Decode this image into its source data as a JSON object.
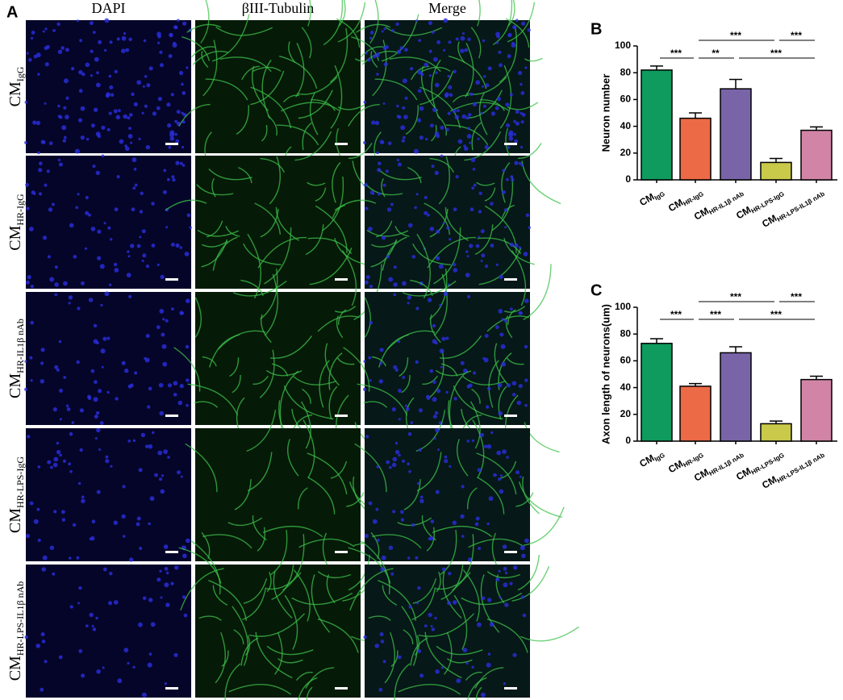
{
  "figure": {
    "panel_a": {
      "label": "A",
      "columns": [
        "DAPI",
        "βIII-Tubulin",
        "Merge"
      ],
      "rows": [
        {
          "main": "CM",
          "sub": "IgG"
        },
        {
          "main": "CM",
          "sub": "HR-IgG"
        },
        {
          "main": "CM",
          "sub": "HR-IL1β nAb"
        },
        {
          "main": "CM",
          "sub": "HR-LPS-IgG"
        },
        {
          "main": "CM",
          "sub": "HR-LPS-IL1β nAb"
        }
      ]
    }
  },
  "chart_data": [
    {
      "type": "bar",
      "panel_label": "B",
      "y_label": "Neuron number",
      "categories": [
        {
          "main": "CM",
          "sub": "IgG"
        },
        {
          "main": "CM",
          "sub": "HR-IgG"
        },
        {
          "main": "CM",
          "sub": "HR-IL1β nAb"
        },
        {
          "main": "CM",
          "sub": "HR-LPS-IgG"
        },
        {
          "main": "CM",
          "sub": "HR-LPS-IL1β nAb"
        }
      ],
      "values": [
        82,
        46,
        68,
        13,
        37
      ],
      "errors": [
        3,
        4,
        7,
        3,
        2.5
      ],
      "colors": [
        "#0f9b5e",
        "#ec6a46",
        "#7a64a8",
        "#c9c94a",
        "#d184a6"
      ],
      "ylim": [
        0,
        100
      ],
      "yticks": [
        0,
        20,
        40,
        60,
        80,
        100
      ],
      "comparisons": [
        {
          "groups": [
            0,
            1
          ],
          "label": "***"
        },
        {
          "groups": [
            1,
            2
          ],
          "label": "**"
        },
        {
          "groups": [
            2,
            4
          ],
          "label": "***"
        },
        {
          "groups": [
            1,
            3
          ],
          "label": "***"
        },
        {
          "groups": [
            3,
            4
          ],
          "label": "***"
        }
      ]
    },
    {
      "type": "bar",
      "panel_label": "C",
      "y_label": "Axon length of neurons(um)",
      "categories": [
        {
          "main": "CM",
          "sub": "IgG"
        },
        {
          "main": "CM",
          "sub": "HR-IgG"
        },
        {
          "main": "CM",
          "sub": "HR-IL1β nAb"
        },
        {
          "main": "CM",
          "sub": "HR-LPS-IgG"
        },
        {
          "main": "CM",
          "sub": "HR-LPS-IL1β nAb"
        }
      ],
      "values": [
        73,
        41,
        66,
        13,
        46
      ],
      "errors": [
        3.5,
        2,
        4.5,
        2,
        2.5
      ],
      "colors": [
        "#0f9b5e",
        "#ec6a46",
        "#7a64a8",
        "#c9c94a",
        "#d184a6"
      ],
      "ylim": [
        0,
        100
      ],
      "yticks": [
        0,
        20,
        40,
        60,
        80,
        100
      ],
      "comparisons": [
        {
          "groups": [
            0,
            1
          ],
          "label": "***"
        },
        {
          "groups": [
            1,
            2
          ],
          "label": "***"
        },
        {
          "groups": [
            2,
            4
          ],
          "label": "***"
        },
        {
          "groups": [
            1,
            3
          ],
          "label": "***"
        },
        {
          "groups": [
            3,
            4
          ],
          "label": "***"
        }
      ]
    }
  ]
}
